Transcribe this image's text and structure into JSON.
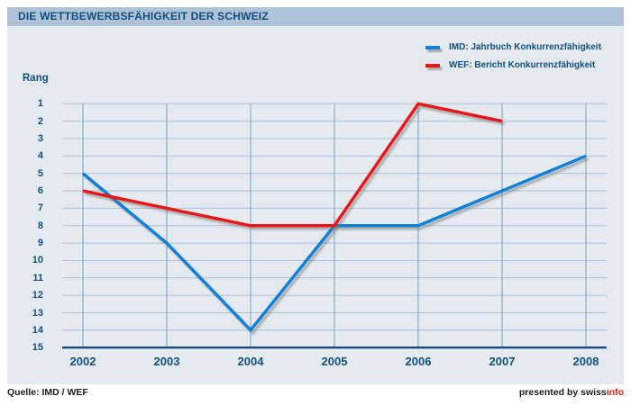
{
  "title": "DIE WETTBEWERBSFÄHIGKEIT DER SCHWEIZ",
  "chart_data": {
    "type": "line",
    "title": "DIE WETTBEWERBSFÄHIGKEIT DER SCHWEIZ",
    "xlabel": "",
    "ylabel": "Rang",
    "x": [
      2002,
      2003,
      2004,
      2005,
      2006,
      2007,
      2008
    ],
    "series": [
      {
        "name": "IMD: Jahrbuch Konkurrenzfähigkeit",
        "color": "#1080d8",
        "values": [
          5,
          9,
          14,
          8,
          8,
          6,
          4
        ]
      },
      {
        "name": "WEF: Bericht Konkurrenzfähigkeit",
        "color": "#ec1414",
        "values": [
          6,
          7,
          8,
          8,
          1,
          2,
          null
        ]
      }
    ],
    "yticks": [
      1,
      2,
      3,
      4,
      5,
      6,
      7,
      8,
      9,
      10,
      11,
      12,
      13,
      14,
      15
    ],
    "ylim": [
      1,
      15
    ],
    "y_axis_inverted": true,
    "grid": true,
    "legend_position": "top-right"
  },
  "footer": {
    "source": "Quelle: IMD / WEF",
    "presented_by_prefix": "presented by swiss",
    "presented_by_accent": "info",
    "accent_color": "#e5231c"
  },
  "colors": {
    "title_bar_bg": "#aec3d8",
    "panel_bg": "#e5eaf0",
    "text_navy": "#12507e",
    "axis_navy": "#17497a",
    "grid_horizontal": "#adc0d5",
    "grid_vertical": "#7e9cbb",
    "line_shadow": "#6e6e6e"
  }
}
